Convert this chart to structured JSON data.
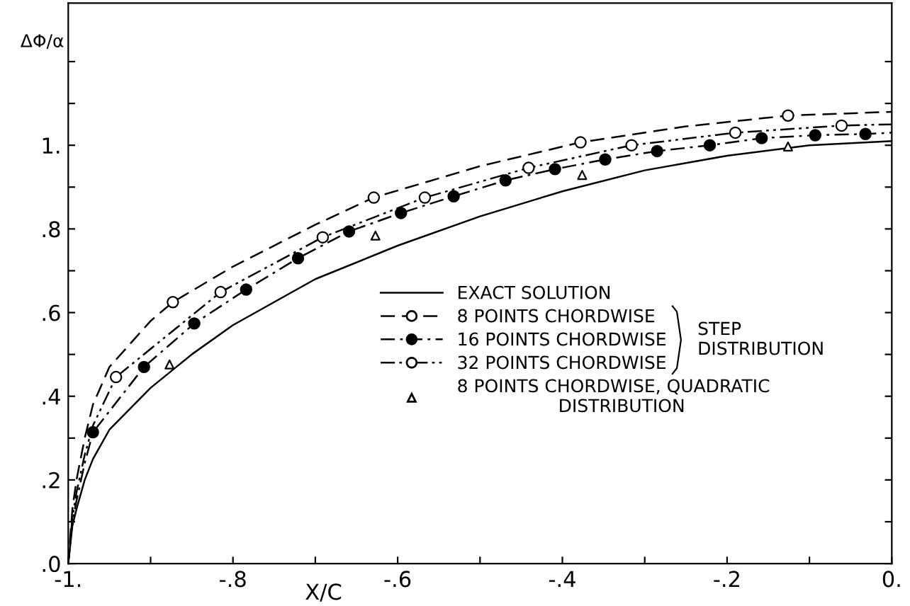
{
  "chart_data": {
    "type": "line",
    "xlabel": "X/C",
    "ylabel": "ΔΦ/α",
    "xlim": [
      -1,
      0
    ],
    "ylim": [
      0,
      1.34
    ],
    "xticks": [
      {
        "value": -1,
        "label": "-1."
      },
      {
        "value": -0.9,
        "label": null
      },
      {
        "value": -0.8,
        "label": "-.8"
      },
      {
        "value": -0.7,
        "label": null
      },
      {
        "value": -0.6,
        "label": "-.6"
      },
      {
        "value": -0.5,
        "label": null
      },
      {
        "value": -0.4,
        "label": "-.4"
      },
      {
        "value": -0.3,
        "label": null
      },
      {
        "value": -0.2,
        "label": "-.2"
      },
      {
        "value": -0.1,
        "label": null
      },
      {
        "value": 0,
        "label": "0."
      }
    ],
    "yticks": [
      {
        "value": 0,
        "label": ".0"
      },
      {
        "value": 0.1,
        "label": null
      },
      {
        "value": 0.2,
        "label": ".2"
      },
      {
        "value": 0.3,
        "label": null
      },
      {
        "value": 0.4,
        "label": ".4"
      },
      {
        "value": 0.5,
        "label": null
      },
      {
        "value": 0.6,
        "label": ".6"
      },
      {
        "value": 0.7,
        "label": null
      },
      {
        "value": 0.8,
        "label": ".8"
      },
      {
        "value": 0.9,
        "label": null
      },
      {
        "value": 1.0,
        "label": "1."
      },
      {
        "value": 1.1,
        "label": null
      },
      {
        "value": 1.2,
        "label": null
      }
    ],
    "grid": false,
    "legend": "right",
    "annotations": [
      "STEP DISTRIBUTION"
    ],
    "series": [
      {
        "name": "EXACT SOLUTION",
        "line_style": "solid",
        "color": "#000000",
        "x": [
          -1,
          -0.995,
          -0.99,
          -0.98,
          -0.97,
          -0.95,
          -0.9,
          -0.85,
          -0.8,
          -0.7,
          -0.6,
          -0.5,
          -0.4,
          -0.3,
          -0.2,
          -0.1,
          0
        ],
        "values": [
          0,
          0.09,
          0.13,
          0.2,
          0.25,
          0.32,
          0.42,
          0.5,
          0.57,
          0.68,
          0.76,
          0.83,
          0.89,
          0.94,
          0.975,
          1.0,
          1.01
        ]
      },
      {
        "line_style": "dashed",
        "color": "#000000",
        "x": [
          -1,
          -0.995,
          -0.99,
          -0.98,
          -0.97,
          -0.95,
          -0.9,
          -0.873,
          -0.8,
          -0.7,
          -0.629,
          -0.5,
          -0.378,
          -0.25,
          -0.126,
          0
        ],
        "values": [
          0,
          0.13,
          0.2,
          0.3,
          0.38,
          0.47,
          0.58,
          0.625,
          0.71,
          0.81,
          0.875,
          0.95,
          1.007,
          1.045,
          1.071,
          1.08
        ]
      },
      {
        "line_style": "dashdot",
        "color": "#000000",
        "x": [
          -1,
          -0.995,
          -0.99,
          -0.98,
          -0.97,
          -0.908,
          -0.847,
          -0.784,
          -0.721,
          -0.659,
          -0.596,
          -0.532,
          -0.469,
          -0.409,
          -0.348,
          -0.285,
          -0.221,
          -0.158,
          -0.093,
          -0.032,
          0
        ],
        "values": [
          0,
          0.1,
          0.15,
          0.24,
          0.314,
          0.47,
          0.574,
          0.655,
          0.73,
          0.794,
          0.838,
          0.878,
          0.916,
          0.943,
          0.966,
          0.986,
          1.0,
          1.017,
          1.024,
          1.027,
          1.03
        ]
      },
      {
        "line_style": "dashdotdot",
        "color": "#000000",
        "x": [
          -1,
          -0.995,
          -0.99,
          -0.98,
          -0.97,
          -0.942,
          -0.815,
          -0.691,
          -0.567,
          -0.441,
          -0.316,
          -0.19,
          -0.061,
          0
        ],
        "values": [
          0,
          0.11,
          0.17,
          0.26,
          0.33,
          0.446,
          0.649,
          0.78,
          0.875,
          0.946,
          1.0,
          1.03,
          1.047,
          1.05
        ]
      },
      {
        "name": "8 POINTS CHORDWISE",
        "type": "scatter",
        "marker": "circle",
        "line_style": "dashed",
        "color": "#ffffff",
        "x": [
          -0.873,
          -0.629,
          -0.378,
          -0.126
        ],
        "values": [
          0.625,
          0.875,
          1.007,
          1.071
        ]
      },
      {
        "name": "16 POINTS CHORDWISE",
        "type": "scatter",
        "marker": "circle",
        "line_style": "dashdot",
        "color": "#000000",
        "x": [
          -0.97,
          -0.908,
          -0.847,
          -0.784,
          -0.721,
          -0.659,
          -0.596,
          -0.532,
          -0.469,
          -0.409,
          -0.348,
          -0.285,
          -0.221,
          -0.158,
          -0.093,
          -0.032
        ],
        "values": [
          0.314,
          0.47,
          0.574,
          0.655,
          0.73,
          0.794,
          0.838,
          0.878,
          0.916,
          0.943,
          0.966,
          0.986,
          1.0,
          1.017,
          1.024,
          1.027
        ]
      },
      {
        "name": "32 POINTS CHORDWISE",
        "type": "scatter",
        "marker": "circle",
        "line_style": "dashdotdot",
        "color": "#ffffff",
        "x": [
          -0.942,
          -0.815,
          -0.691,
          -0.567,
          -0.441,
          -0.316,
          -0.19,
          -0.061
        ],
        "values": [
          0.446,
          0.649,
          0.78,
          0.875,
          0.946,
          1.0,
          1.03,
          1.047
        ]
      },
      {
        "name": "8 POINTS CHORDWISE, QUADRATIC DISTRIBUTION",
        "type": "scatter",
        "marker": "triangle",
        "color": "#ffffff",
        "x": [
          -0.877,
          -0.627,
          -0.376,
          -0.126
        ],
        "values": [
          0.476,
          0.784,
          0.929,
          0.997
        ]
      }
    ]
  }
}
